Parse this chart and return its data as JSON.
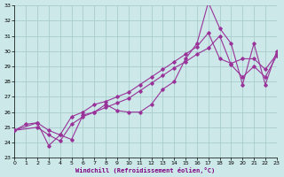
{
  "xlabel": "Windchill (Refroidissement éolien,°C)",
  "xlim": [
    0,
    23
  ],
  "ylim": [
    23,
    33
  ],
  "xticks": [
    0,
    1,
    2,
    3,
    4,
    5,
    6,
    7,
    8,
    9,
    10,
    11,
    12,
    13,
    14,
    15,
    16,
    17,
    18,
    19,
    20,
    21,
    22,
    23
  ],
  "yticks": [
    23,
    24,
    25,
    26,
    27,
    28,
    29,
    30,
    31,
    32,
    33
  ],
  "bg_color": "#cce8e8",
  "grid_color": "#aacccc",
  "line_color": "#993399",
  "line1_x": [
    0,
    1,
    2,
    3,
    4,
    5,
    6,
    7,
    8,
    9,
    10,
    11,
    12,
    13,
    14,
    15,
    16,
    17,
    18,
    19,
    20,
    21,
    22,
    23
  ],
  "line1_y": [
    24.8,
    25.2,
    25.3,
    23.8,
    24.5,
    24.2,
    25.8,
    26.0,
    26.5,
    26.1,
    26.0,
    26.0,
    26.5,
    27.5,
    28.0,
    29.5,
    30.5,
    33.2,
    31.5,
    30.5,
    27.8,
    30.5,
    27.8,
    30.0
  ],
  "line2_x": [
    0,
    2,
    3,
    4,
    5,
    6,
    7,
    8,
    9,
    10,
    11,
    12,
    13,
    14,
    15,
    16,
    17,
    18,
    19,
    20,
    21,
    22,
    23
  ],
  "line2_y": [
    24.8,
    25.3,
    24.8,
    24.5,
    25.7,
    26.0,
    26.5,
    26.7,
    27.0,
    27.3,
    27.8,
    28.3,
    28.8,
    29.3,
    29.8,
    30.3,
    31.2,
    29.5,
    29.2,
    29.5,
    29.5,
    28.8,
    29.8
  ],
  "line3_x": [
    0,
    2,
    3,
    4,
    5,
    6,
    7,
    8,
    9,
    10,
    11,
    12,
    13,
    14,
    15,
    16,
    17,
    18,
    19,
    20,
    21,
    22,
    23
  ],
  "line3_y": [
    24.8,
    25.0,
    24.5,
    24.1,
    25.2,
    25.7,
    26.0,
    26.3,
    26.6,
    26.9,
    27.4,
    27.9,
    28.4,
    28.9,
    29.3,
    29.8,
    30.2,
    31.0,
    29.1,
    28.3,
    29.0,
    28.3,
    29.7
  ]
}
